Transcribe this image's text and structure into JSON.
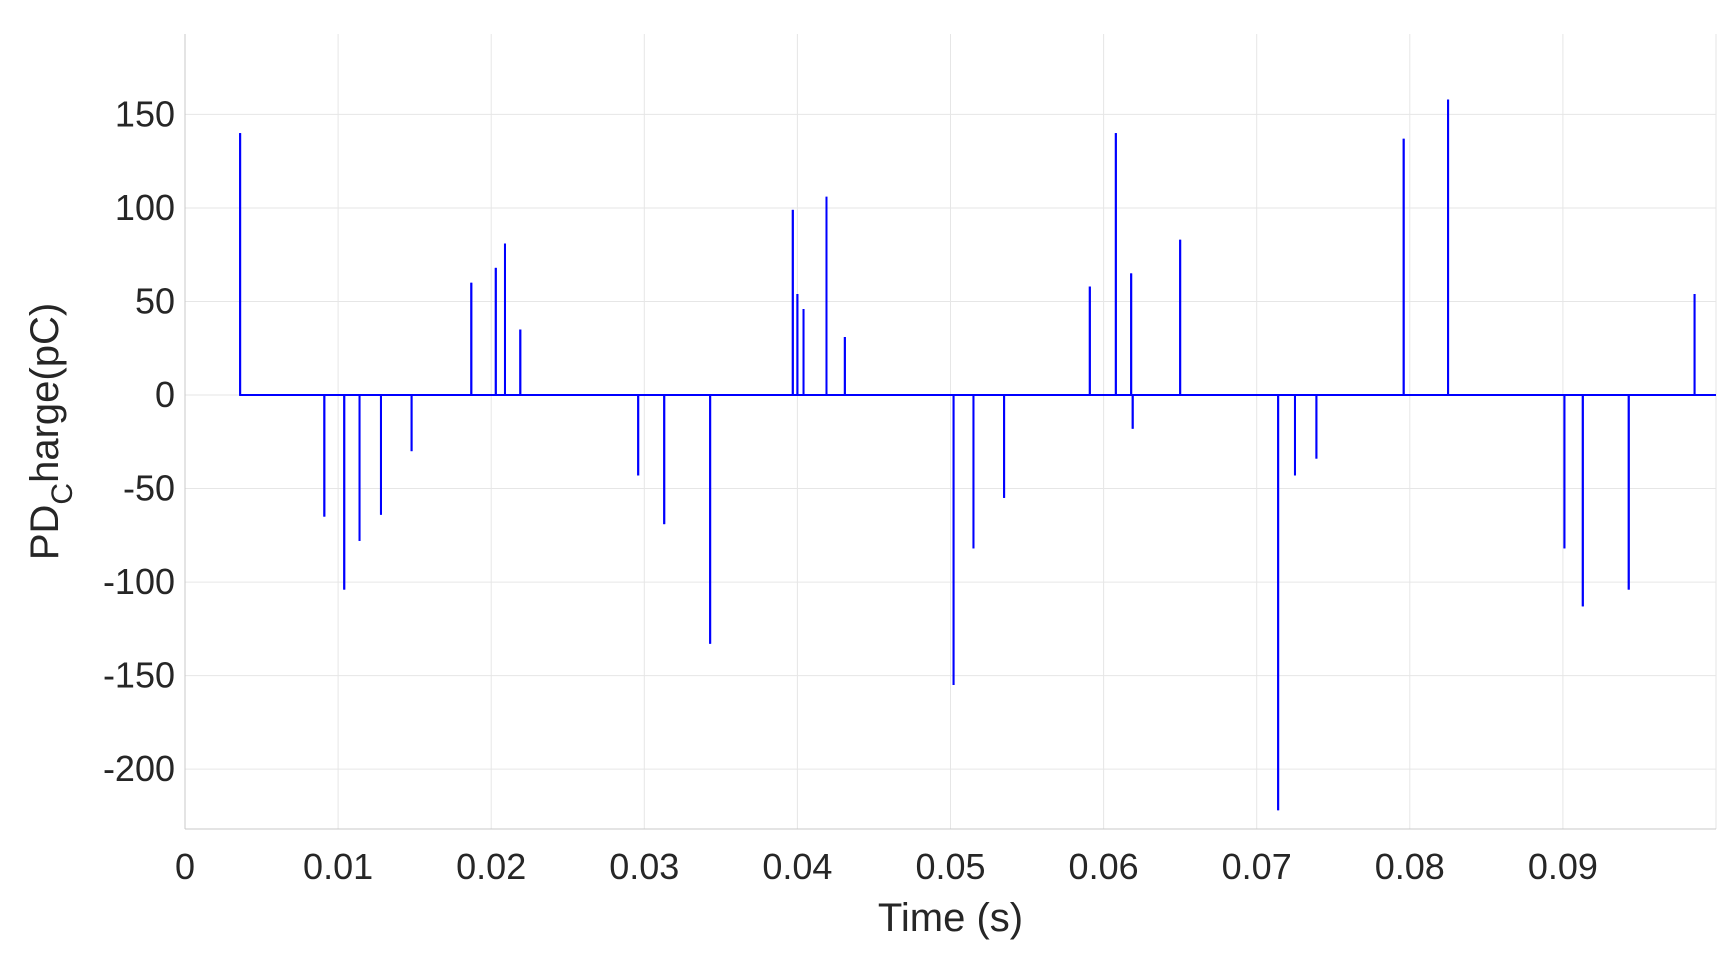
{
  "chart_data": {
    "type": "line",
    "title": "",
    "xlabel": "Time (s)",
    "ylabel_main": "PD",
    "ylabel_sub": "C",
    "ylabel_rest": "harge(pC)",
    "xlim": [
      0,
      0.1
    ],
    "ylim": [
      -232,
      193
    ],
    "xticks": [
      0,
      0.01,
      0.02,
      0.03,
      0.04,
      0.05,
      0.06,
      0.07,
      0.08,
      0.09
    ],
    "xtick_labels": [
      "0",
      "0.01",
      "0.02",
      "0.03",
      "0.04",
      "0.05",
      "0.06",
      "0.07",
      "0.08",
      "0.09"
    ],
    "yticks": [
      150,
      100,
      50,
      0,
      -50,
      -100,
      -150,
      -200
    ],
    "ytick_labels": [
      "150",
      "100",
      "50",
      "0",
      "-50",
      "-100",
      "-150",
      "-200"
    ],
    "grid": true,
    "line_color": "#0000ff",
    "series": [
      {
        "name": "",
        "pulses": [
          {
            "t": 0.0036,
            "v": 140
          },
          {
            "t": 0.0091,
            "v": -65
          },
          {
            "t": 0.0104,
            "v": -104
          },
          {
            "t": 0.0114,
            "v": -78
          },
          {
            "t": 0.0128,
            "v": -64
          },
          {
            "t": 0.0148,
            "v": -30
          },
          {
            "t": 0.0187,
            "v": 60
          },
          {
            "t": 0.0203,
            "v": 68
          },
          {
            "t": 0.0209,
            "v": 81
          },
          {
            "t": 0.0219,
            "v": 35
          },
          {
            "t": 0.0296,
            "v": -43
          },
          {
            "t": 0.0313,
            "v": -69
          },
          {
            "t": 0.0343,
            "v": -133
          },
          {
            "t": 0.0397,
            "v": 99
          },
          {
            "t": 0.04,
            "v": 54
          },
          {
            "t": 0.0404,
            "v": 46
          },
          {
            "t": 0.0419,
            "v": 106
          },
          {
            "t": 0.0431,
            "v": 31
          },
          {
            "t": 0.0502,
            "v": -155
          },
          {
            "t": 0.0515,
            "v": -82
          },
          {
            "t": 0.0535,
            "v": -55
          },
          {
            "t": 0.0591,
            "v": 58
          },
          {
            "t": 0.0608,
            "v": 140
          },
          {
            "t": 0.0618,
            "v": 65
          },
          {
            "t": 0.0619,
            "v": -18
          },
          {
            "t": 0.065,
            "v": 83
          },
          {
            "t": 0.0714,
            "v": -222
          },
          {
            "t": 0.0725,
            "v": -43
          },
          {
            "t": 0.0739,
            "v": -34
          },
          {
            "t": 0.0796,
            "v": 137
          },
          {
            "t": 0.0825,
            "v": 158
          },
          {
            "t": 0.0901,
            "v": -82
          },
          {
            "t": 0.0913,
            "v": -113
          },
          {
            "t": 0.0943,
            "v": -104
          },
          {
            "t": 0.0986,
            "v": 54
          }
        ]
      }
    ]
  }
}
